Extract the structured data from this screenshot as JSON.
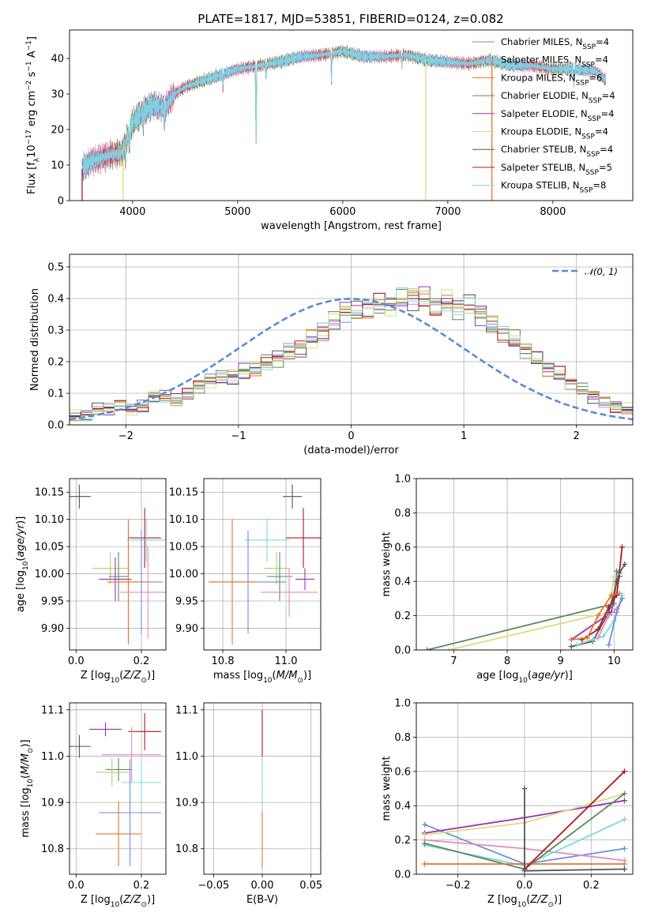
{
  "figure_title": "PLATE=1817, MJD=53851, FIBERID=0124, z=0.082",
  "colors": {
    "Chabrier MILES": "#6a8fd8",
    "Salpeter MILES": "#e88ac0",
    "Kroupa MILES": "#e8742a",
    "Chabrier ELODIE": "#5a8a5a",
    "Salpeter ELODIE": "#9b30b8",
    "Kroupa ELODIE": "#d8e07a",
    "Chabrier STELIB": "#555555",
    "Salpeter STELIB": "#b01818",
    "Kroupa STELIB": "#7fd8e0",
    "Kroupa ELODIE alt": "#a8d070"
  },
  "chart_data": [
    {
      "type": "line",
      "panel": "spectrum",
      "title": "PLATE=1817, MJD=53851, FIBERID=0124, z=0.082",
      "xlabel": "wavelength [Angstrom, rest frame]",
      "ylabel": "Flux [fλ10⁻¹⁷ erg cm⁻² s⁻¹ A⁻¹]",
      "xlim": [
        3400,
        8760
      ],
      "ylim": [
        0,
        48
      ],
      "xticks": [
        4000,
        5000,
        6000,
        7000,
        8000
      ],
      "yticks": [
        0,
        10,
        20,
        30,
        40
      ],
      "legend": "top-right",
      "legend_entries": [
        {
          "label": "Chabrier MILES, N",
          "sub": "SSP",
          "tail": "=4",
          "key": "Chabrier MILES"
        },
        {
          "label": "Salpeter MILES, N",
          "sub": "SSP",
          "tail": "=4",
          "key": "Salpeter MILES"
        },
        {
          "label": "Kroupa MILES, N",
          "sub": "SSP",
          "tail": "=6",
          "key": "Kroupa MILES"
        },
        {
          "label": "Chabrier ELODIE, N",
          "sub": "SSP",
          "tail": "=4",
          "key": "Chabrier ELODIE"
        },
        {
          "label": "Salpeter ELODIE, N",
          "sub": "SSP",
          "tail": "=4",
          "key": "Salpeter ELODIE"
        },
        {
          "label": "Kroupa ELODIE, N",
          "sub": "SSP",
          "tail": "=4",
          "key": "Kroupa ELODIE"
        },
        {
          "label": "Chabrier STELIB, N",
          "sub": "SSP",
          "tail": "=4",
          "key": "Chabrier STELIB"
        },
        {
          "label": "Salpeter STELIB, N",
          "sub": "SSP",
          "tail": "=5",
          "key": "Salpeter STELIB"
        },
        {
          "label": "Kroupa STELIB, N",
          "sub": "SSP",
          "tail": "=8",
          "key": "Kroupa STELIB"
        }
      ],
      "continuum": {
        "x": [
          3520,
          3600,
          3700,
          3800,
          3900,
          4000,
          4100,
          4200,
          4300,
          4400,
          4500,
          4600,
          4800,
          5000,
          5200,
          5400,
          5600,
          5800,
          6000,
          6200,
          6400,
          6600,
          6800,
          7000,
          7200,
          7400,
          7600,
          7800,
          8000,
          8200,
          8400,
          8500
        ],
        "y": [
          9,
          11,
          12,
          13,
          13.5,
          22,
          25,
          27,
          26,
          30,
          32,
          33,
          35,
          37,
          38,
          39,
          40.5,
          41,
          42,
          40.5,
          40.5,
          41,
          39.5,
          39,
          38.5,
          39.5,
          38,
          38,
          37,
          37,
          36.5,
          34
        ]
      },
      "absorption_features": [
        {
          "x": 3934,
          "depth": 6
        },
        {
          "x": 3969,
          "depth": 5
        },
        {
          "x": 4102,
          "depth": 4
        },
        {
          "x": 4304,
          "depth": 6
        },
        {
          "x": 4861,
          "depth": 4
        },
        {
          "x": 5175,
          "depth": 22
        },
        {
          "x": 5270,
          "depth": 4
        },
        {
          "x": 5893,
          "depth": 8
        },
        {
          "x": 6563,
          "depth": 3
        },
        {
          "x": 8200,
          "depth": 4
        }
      ],
      "masked_regions": [
        {
          "x": 3520,
          "series": "Salpeter STELIB"
        },
        {
          "x": 3910,
          "series": "Kroupa ELODIE"
        },
        {
          "x": 6790,
          "series": "Kroupa ELODIE"
        },
        {
          "x": 7420,
          "series": "Kroupa MILES"
        }
      ]
    },
    {
      "type": "histogram",
      "panel": "residuals",
      "xlabel": "(data-model)/error",
      "ylabel": "Normed distribution",
      "xlim": [
        -2.5,
        2.5
      ],
      "ylim": [
        0,
        0.54
      ],
      "xticks": [
        -2,
        -1,
        0,
        1,
        2
      ],
      "yticks": [
        0.0,
        0.1,
        0.2,
        0.3,
        0.4,
        0.5
      ],
      "grid": true,
      "legend": "top-right",
      "reference_curve": {
        "label": "𝒩(0, 1)",
        "mean": 0,
        "sigma": 1,
        "color": "#5b8bd6"
      },
      "bin_width": 0.1,
      "n_bins": 50,
      "base_shape": [
        0.03,
        0.03,
        0.05,
        0.05,
        0.06,
        0.05,
        0.06,
        0.09,
        0.09,
        0.08,
        0.1,
        0.12,
        0.14,
        0.15,
        0.15,
        0.17,
        0.18,
        0.2,
        0.21,
        0.23,
        0.24,
        0.27,
        0.3,
        0.33,
        0.36,
        0.36,
        0.37,
        0.38,
        0.38,
        0.4,
        0.4,
        0.4,
        0.38,
        0.39,
        0.37,
        0.38,
        0.35,
        0.31,
        0.29,
        0.27,
        0.24,
        0.21,
        0.18,
        0.16,
        0.13,
        0.11,
        0.09,
        0.07,
        0.06,
        0.05
      ]
    },
    {
      "type": "errorbar",
      "panel": "age-vs-Z",
      "xlabel": "Z [log10(Z/Z⊙)]",
      "ylabel": "age [log10(age/yr)]",
      "xlim": [
        -0.02,
        0.275
      ],
      "ylim": [
        9.86,
        10.175
      ],
      "xticks": [
        0.0,
        0.2
      ],
      "yticks": [
        9.9,
        9.95,
        10.0,
        10.05,
        10.1,
        10.15
      ],
      "grid": true,
      "points": [
        {
          "series": "Chabrier STELIB",
          "x": 0.01,
          "xerr": 0.035,
          "y": 10.142,
          "yerr": 0.022
        },
        {
          "series": "Salpeter STELIB",
          "x": 0.21,
          "xerr": 0.05,
          "y": 10.066,
          "yerr": 0.055
        },
        {
          "series": "Kroupa STELIB",
          "x": 0.215,
          "xerr": 0.06,
          "y": 10.062,
          "yerr": 0.04
        },
        {
          "series": "Kroupa ELODIE alt",
          "x": 0.105,
          "xerr": 0.055,
          "y": 10.01,
          "yerr": 0.03
        },
        {
          "series": "Chabrier ELODIE",
          "x": 0.13,
          "xerr": 0.03,
          "y": 9.995,
          "yerr": 0.045
        },
        {
          "series": "Salpeter ELODIE",
          "x": 0.12,
          "xerr": 0.05,
          "y": 9.99,
          "yerr": 0.04
        },
        {
          "series": "Chabrier MILES",
          "x": 0.2,
          "xerr": 0.065,
          "y": 9.985,
          "yerr": 0.095
        },
        {
          "series": "Kroupa MILES",
          "x": 0.16,
          "xerr": 0.065,
          "y": 9.985,
          "yerr": 0.115
        },
        {
          "series": "Salpeter MILES",
          "x": 0.22,
          "xerr": 0.085,
          "y": 9.966,
          "yerr": 0.085
        }
      ]
    },
    {
      "type": "errorbar",
      "panel": "age-vs-mass",
      "xlabel": "mass [log10(M/M⊙)]",
      "ylabel": "",
      "xlim": [
        10.74,
        11.11
      ],
      "ylim": [
        9.86,
        10.175
      ],
      "xticks": [
        10.8,
        11.0
      ],
      "yticks": [
        9.9,
        9.95,
        10.0,
        10.05,
        10.1,
        10.15
      ],
      "grid": true,
      "points": [
        {
          "series": "Chabrier STELIB",
          "x": 11.02,
          "xerr": 0.03,
          "y": 10.142,
          "yerr": 0.022
        },
        {
          "series": "Salpeter STELIB",
          "x": 11.055,
          "xerr": 0.055,
          "y": 10.066,
          "yerr": 0.055
        },
        {
          "series": "Kroupa STELIB",
          "x": 10.94,
          "xerr": 0.07,
          "y": 10.062,
          "yerr": 0.04
        },
        {
          "series": "Kroupa ELODIE alt",
          "x": 10.97,
          "xerr": 0.04,
          "y": 10.01,
          "yerr": 0.03
        },
        {
          "series": "Chabrier ELODIE",
          "x": 10.98,
          "xerr": 0.04,
          "y": 9.995,
          "yerr": 0.045
        },
        {
          "series": "Salpeter ELODIE",
          "x": 11.06,
          "xerr": 0.03,
          "y": 9.99,
          "yerr": 0.02
        },
        {
          "series": "Chabrier MILES",
          "x": 10.88,
          "xerr": 0.12,
          "y": 9.985,
          "yerr": 0.095
        },
        {
          "series": "Kroupa MILES",
          "x": 10.83,
          "xerr": 0.075,
          "y": 9.985,
          "yerr": 0.115
        },
        {
          "series": "Salpeter MILES",
          "x": 11.01,
          "xerr": 0.09,
          "y": 9.966,
          "yerr": 0.045
        }
      ]
    },
    {
      "type": "errorbar",
      "panel": "mass-vs-Z",
      "xlabel": "Z [log10(Z/Z⊙)]",
      "ylabel": "mass [log10(M/M⊙)]",
      "xlim": [
        -0.02,
        0.275
      ],
      "ylim": [
        10.745,
        11.115
      ],
      "xticks": [
        0.0,
        0.2
      ],
      "yticks": [
        10.8,
        10.9,
        11.0,
        11.1
      ],
      "grid": true,
      "points": [
        {
          "series": "Chabrier STELIB",
          "x": 0.01,
          "xerr": 0.035,
          "y": 11.021,
          "yerr": 0.025
        },
        {
          "series": "Salpeter ELODIE",
          "x": 0.09,
          "xerr": 0.05,
          "y": 11.058,
          "yerr": 0.015
        },
        {
          "series": "Salpeter STELIB",
          "x": 0.21,
          "xerr": 0.05,
          "y": 11.053,
          "yerr": 0.04
        },
        {
          "series": "Salpeter MILES",
          "x": 0.17,
          "xerr": 0.09,
          "y": 11.003,
          "yerr": 0.06
        },
        {
          "series": "Chabrier ELODIE",
          "x": 0.13,
          "xerr": 0.04,
          "y": 10.971,
          "yerr": 0.025
        },
        {
          "series": "Kroupa ELODIE alt",
          "x": 0.11,
          "xerr": 0.05,
          "y": 10.965,
          "yerr": 0.03
        },
        {
          "series": "Kroupa STELIB",
          "x": 0.2,
          "xerr": 0.06,
          "y": 10.943,
          "yerr": 0.05
        },
        {
          "series": "Chabrier MILES",
          "x": 0.165,
          "xerr": 0.095,
          "y": 10.878,
          "yerr": 0.115
        },
        {
          "series": "Kroupa MILES",
          "x": 0.13,
          "xerr": 0.07,
          "y": 10.832,
          "yerr": 0.07
        }
      ]
    },
    {
      "type": "errorbar",
      "panel": "mass-vs-EBV",
      "xlabel": "E(B-V)",
      "ylabel": "",
      "xlim": [
        -0.06,
        0.06
      ],
      "ylim": [
        10.745,
        11.115
      ],
      "xticks": [
        -0.05,
        0.0,
        0.05
      ],
      "yticks": [
        10.8,
        10.9,
        11.0,
        11.1
      ],
      "grid": true,
      "points": [
        {
          "series": "Salpeter STELIB",
          "x": 0.0,
          "y": 11.05,
          "yerr": 0.05
        },
        {
          "series": "Kroupa ELODIE alt",
          "x": 0.0,
          "y": 10.97,
          "yerr": 0.02
        },
        {
          "series": "Kroupa STELIB",
          "x": 0.0,
          "y": 10.94,
          "yerr": 0.05
        },
        {
          "series": "Kroupa MILES",
          "x": 0.0,
          "y": 10.82,
          "yerr": 0.06
        }
      ]
    },
    {
      "type": "line",
      "panel": "mass-weight-vs-age",
      "xlabel": "age [log10(age/yr)]",
      "ylabel": "mass weight",
      "xlim": [
        6.3,
        10.35
      ],
      "ylim": [
        0,
        1.0
      ],
      "xticks": [
        7,
        8,
        9,
        10
      ],
      "yticks": [
        0.0,
        0.2,
        0.4,
        0.6,
        0.8,
        1.0
      ],
      "grid": true,
      "series": [
        {
          "key": "Chabrier ELODIE",
          "x": [
            6.5,
            10.0,
            10.05
          ],
          "y": [
            0.0,
            0.27,
            0.46
          ]
        },
        {
          "key": "Kroupa ELODIE",
          "x": [
            6.9,
            9.9,
            10.0
          ],
          "y": [
            0.0,
            0.22,
            0.43
          ]
        },
        {
          "key": "Salpeter ELODIE",
          "x": [
            9.2,
            9.95,
            10.05,
            10.1
          ],
          "y": [
            0.06,
            0.22,
            0.4,
            0.43
          ]
        },
        {
          "key": "Salpeter STELIB",
          "x": [
            9.4,
            9.7,
            9.9,
            10.05,
            10.15
          ],
          "y": [
            0.06,
            0.12,
            0.25,
            0.32,
            0.6
          ]
        },
        {
          "key": "Chabrier STELIB",
          "x": [
            9.2,
            9.6,
            9.9,
            10.1,
            10.2
          ],
          "y": [
            0.02,
            0.05,
            0.22,
            0.45,
            0.5
          ]
        },
        {
          "key": "Kroupa MILES",
          "x": [
            9.2,
            9.5,
            9.7,
            9.95,
            10.1
          ],
          "y": [
            0.06,
            0.07,
            0.2,
            0.32,
            0.33
          ]
        },
        {
          "key": "Kroupa STELIB",
          "x": [
            9.3,
            9.6,
            9.8,
            10.0,
            10.15
          ],
          "y": [
            0.03,
            0.06,
            0.08,
            0.17,
            0.32
          ]
        },
        {
          "key": "Salpeter MILES",
          "x": [
            9.7,
            9.9,
            10.05,
            10.15
          ],
          "y": [
            0.07,
            0.2,
            0.24,
            0.3
          ]
        },
        {
          "key": "Chabrier MILES",
          "x": [
            9.9,
            10.05,
            10.15
          ],
          "y": [
            0.03,
            0.22,
            0.3
          ]
        }
      ]
    },
    {
      "type": "line",
      "panel": "mass-weight-vs-Z",
      "xlabel": "Z [log10(Z/Z⊙)]",
      "ylabel": "mass weight",
      "xlim": [
        -0.325,
        0.325
      ],
      "ylim": [
        0,
        1.0
      ],
      "xticks": [
        -0.2,
        0.0,
        0.2
      ],
      "yticks": [
        0.0,
        0.2,
        0.4,
        0.6,
        0.8,
        1.0
      ],
      "grid": true,
      "series": [
        {
          "key": "Chabrier MILES",
          "x": [
            -0.3,
            0.0,
            0.3
          ],
          "y": [
            0.29,
            0.06,
            0.15
          ]
        },
        {
          "key": "Salpeter ELODIE",
          "x": [
            -0.3,
            0.0,
            0.3
          ],
          "y": [
            0.24,
            0.33,
            0.43
          ]
        },
        {
          "key": "Kroupa ELODIE",
          "x": [
            -0.3,
            0.0,
            0.3
          ],
          "y": [
            0.23,
            0.3,
            0.47
          ]
        },
        {
          "key": "Salpeter MILES",
          "x": [
            -0.3,
            0.0,
            0.3
          ],
          "y": [
            0.2,
            0.15,
            0.08
          ]
        },
        {
          "key": "Kroupa STELIB",
          "x": [
            -0.3,
            0.0,
            0.3
          ],
          "y": [
            0.17,
            0.05,
            0.32
          ]
        },
        {
          "key": "Chabrier ELODIE",
          "x": [
            -0.3,
            0.0,
            0.3
          ],
          "y": [
            0.18,
            0.03,
            0.47
          ]
        },
        {
          "key": "Kroupa MILES",
          "x": [
            -0.3,
            0.0,
            0.3
          ],
          "y": [
            0.06,
            0.06,
            0.06
          ]
        },
        {
          "key": "Salpeter STELIB",
          "x": [
            0.0,
            0.3
          ],
          "y": [
            0.03,
            0.6
          ]
        },
        {
          "key": "Chabrier STELIB",
          "x": [
            0.0,
            0.0,
            0.3
          ],
          "y": [
            0.5,
            0.02,
            0.03
          ]
        }
      ]
    }
  ]
}
